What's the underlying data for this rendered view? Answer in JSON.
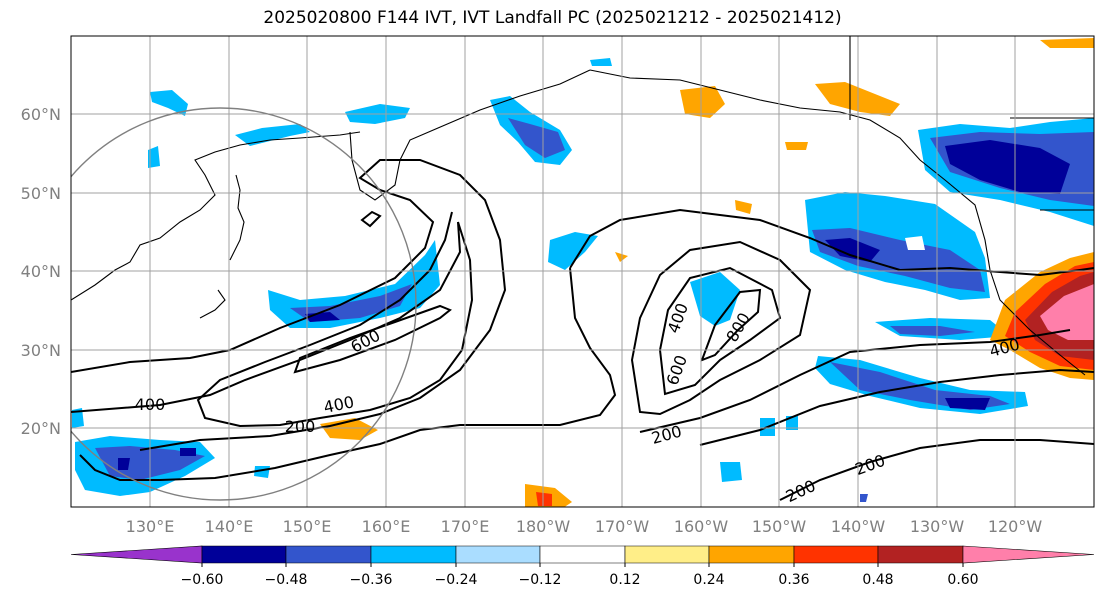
{
  "title": "2025020800 F144 IVT, IVT Landfall PC (2025021212 - 2025021412)",
  "lon_labels": [
    "130°E",
    "140°E",
    "150°E",
    "160°E",
    "170°E",
    "180°W",
    "170°W",
    "160°W",
    "150°W",
    "140°W",
    "130°W",
    "120°W"
  ],
  "lat_labels": [
    "60°N",
    "50°N",
    "40°N",
    "30°N",
    "20°N"
  ],
  "contour_labels": [
    "600",
    "400",
    "200",
    "400",
    "600",
    "800",
    "200",
    "200",
    "200",
    "400",
    "400"
  ],
  "colorbar": {
    "colors": [
      "#9933cc",
      "#000099",
      "#3355cc",
      "#00bbff",
      "#aaddff",
      "#ffffff",
      "#ffee88",
      "#ffa500",
      "#ff3300",
      "#b22222",
      "#ff7faa"
    ],
    "tick_labels": [
      "−0.60",
      "−0.48",
      "−0.36",
      "−0.24",
      "−0.12",
      "0.12",
      "0.24",
      "0.36",
      "0.48",
      "0.60"
    ]
  }
}
